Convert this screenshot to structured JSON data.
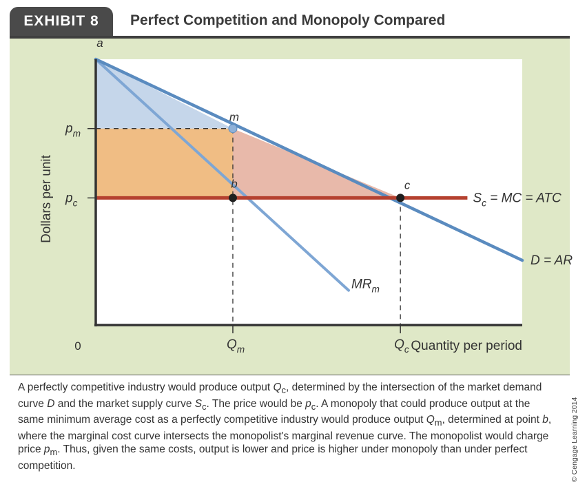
{
  "exhibit": {
    "tab_label": "EXHIBIT 8",
    "title": "Perfect Competition and Monopoly Compared"
  },
  "chart_data": {
    "type": "line",
    "ylabel": "Dollars per unit",
    "xlabel": "Quantity per period",
    "origin_label": "0",
    "x_ticks": [
      {
        "label": "Q",
        "sub": "m",
        "x": 45
      },
      {
        "label": "Q",
        "sub": "c",
        "x": 100
      }
    ],
    "y_ticks": [
      {
        "label": "p",
        "sub": "m",
        "y": 60
      },
      {
        "label": "p",
        "sub": "c",
        "y": 30
      }
    ],
    "xlim": [
      0,
      140
    ],
    "ylim": [
      -25,
      90
    ],
    "series": [
      {
        "name": "D = AR",
        "color": "#5a8bbf",
        "x": [
          0,
          140
        ],
        "y": [
          90,
          3
        ]
      },
      {
        "name": "MR",
        "sub": "m",
        "color": "#7ea6d4",
        "x": [
          0,
          83
        ],
        "y": [
          90,
          -10
        ]
      },
      {
        "name": "S",
        "sub": "c",
        "suffix": " = MC = ATC",
        "color": "#b5412f",
        "x": [
          0,
          122
        ],
        "y": [
          30,
          30
        ]
      }
    ],
    "points": [
      {
        "label": "a",
        "x": 0,
        "y": 90
      },
      {
        "label": "m",
        "x": 45,
        "y": 60
      },
      {
        "label": "b",
        "x": 45,
        "y": 30
      },
      {
        "label": "c",
        "x": 100,
        "y": 30
      }
    ],
    "regions": {
      "consumer_surplus": "#c5d6ea",
      "monopoly_profit": "#f0bd84",
      "deadweight_loss": "#e8b9aa"
    }
  },
  "caption": {
    "text": "A perfectly competitive industry would produce output Qc, determined by the intersection of the market demand curve D and the market supply curve Sc. The price would be pc. A monopoly that could produce output at the same minimum average cost as a perfectly competitive industry would produce output Qm, determined at point b, where the marginal cost curve intersects the monopolist's marginal revenue curve. The monopolist would charge price pm. Thus, given the same costs, output is lower and price is higher under monopoly than under perfect competition."
  },
  "credit": "© Cengage Learning 2014"
}
